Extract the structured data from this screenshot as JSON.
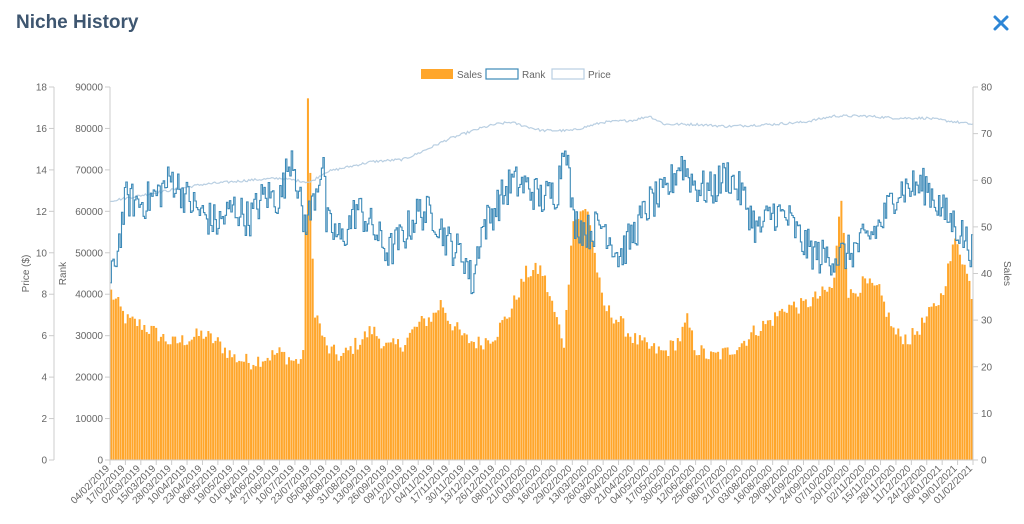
{
  "header": {
    "title": "Niche History",
    "close_icon": "close-icon"
  },
  "colors": {
    "sales": "#ffa62b",
    "rank": "#3d8ab8",
    "price": "#b9cfe2",
    "title": "#3e5670",
    "close": "#2d86d6"
  },
  "chart_data": {
    "type": "line",
    "title": "",
    "legend": [
      "Sales",
      "Rank",
      "Price"
    ],
    "legend_position": "top-center",
    "x_tick_labels": [
      "04/02/2019",
      "17/02/2019",
      "02/03/2019",
      "15/03/2019",
      "28/03/2019",
      "10/04/2019",
      "23/04/2019",
      "06/05/2019",
      "19/05/2019",
      "01/06/2019",
      "14/06/2019",
      "27/06/2019",
      "10/07/2019",
      "23/07/2019",
      "05/08/2019",
      "18/08/2019",
      "31/08/2019",
      "13/09/2019",
      "26/09/2019",
      "09/10/2019",
      "22/10/2019",
      "04/11/2019",
      "17/11/2019",
      "30/11/2019",
      "13/12/2019",
      "26/12/2019",
      "08/01/2020",
      "21/01/2020",
      "03/02/2020",
      "16/02/2020",
      "29/02/2020",
      "13/03/2020",
      "26/03/2020",
      "08/04/2020",
      "21/04/2020",
      "04/05/2020",
      "17/05/2020",
      "30/05/2020",
      "12/06/2020",
      "25/06/2020",
      "08/07/2020",
      "21/07/2020",
      "03/08/2020",
      "16/08/2020",
      "29/08/2020",
      "11/09/2020",
      "24/09/2020",
      "07/10/2020",
      "20/10/2020",
      "02/11/2020",
      "15/11/2020",
      "28/11/2020",
      "11/12/2020",
      "24/12/2020",
      "06/01/2021",
      "19/01/2021",
      "01/02/2021"
    ],
    "y_left_price": {
      "label": "Price ($)",
      "min": 0,
      "max": 18,
      "ticks": [
        0,
        2,
        4,
        6,
        8,
        10,
        12,
        14,
        16,
        18
      ]
    },
    "y_left_rank": {
      "label": "Rank",
      "min": 0,
      "max": 90000,
      "ticks": [
        0,
        10000,
        20000,
        30000,
        40000,
        50000,
        60000,
        70000,
        80000,
        90000
      ]
    },
    "y_right_sales": {
      "label": "Sales",
      "min": 0,
      "max": 80,
      "ticks": [
        0,
        10,
        20,
        30,
        40,
        50,
        60,
        70,
        80
      ]
    },
    "series": [
      {
        "name": "Sales",
        "type": "bar",
        "axis": "right",
        "keypoints": [
          [
            0,
            36
          ],
          [
            1,
            30
          ],
          [
            2,
            29
          ],
          [
            3,
            27
          ],
          [
            4,
            25
          ],
          [
            5,
            26
          ],
          [
            6,
            27
          ],
          [
            7,
            25
          ],
          [
            8,
            22
          ],
          [
            9,
            21
          ],
          [
            10,
            22
          ],
          [
            11,
            23
          ],
          [
            12,
            21
          ],
          [
            12.5,
            22
          ],
          [
            12.8,
            78
          ],
          [
            13.2,
            33
          ],
          [
            14,
            24
          ],
          [
            15,
            22
          ],
          [
            16,
            25
          ],
          [
            17,
            28
          ],
          [
            18,
            24
          ],
          [
            19,
            25
          ],
          [
            20,
            29
          ],
          [
            21,
            31
          ],
          [
            21.5,
            34
          ],
          [
            22,
            30
          ],
          [
            23,
            26
          ],
          [
            24,
            25
          ],
          [
            25,
            27
          ],
          [
            26,
            32
          ],
          [
            27,
            40
          ],
          [
            28,
            41
          ],
          [
            29,
            30
          ],
          [
            29.5,
            25
          ],
          [
            30,
            51
          ],
          [
            31,
            54
          ],
          [
            32,
            33
          ],
          [
            33,
            30
          ],
          [
            34,
            26
          ],
          [
            35,
            24
          ],
          [
            36,
            23
          ],
          [
            37,
            26
          ],
          [
            37.5,
            30
          ],
          [
            38,
            24
          ],
          [
            39,
            22
          ],
          [
            40,
            23
          ],
          [
            41,
            25
          ],
          [
            42,
            28
          ],
          [
            43,
            30
          ],
          [
            44,
            33
          ],
          [
            45,
            33
          ],
          [
            46,
            35
          ],
          [
            47,
            37
          ],
          [
            47.5,
            57
          ],
          [
            48,
            35
          ],
          [
            49,
            38
          ],
          [
            50,
            36
          ],
          [
            51,
            27
          ],
          [
            52,
            26
          ],
          [
            53,
            30
          ],
          [
            54,
            35
          ],
          [
            55,
            48
          ],
          [
            56,
            36
          ]
        ]
      },
      {
        "name": "Rank",
        "type": "line",
        "axis": "rank",
        "keypoints": [
          [
            0,
            42000
          ],
          [
            0.5,
            52000
          ],
          [
            1,
            63000
          ],
          [
            2,
            62000
          ],
          [
            3,
            64000
          ],
          [
            4,
            68000
          ],
          [
            5,
            63000
          ],
          [
            6,
            59000
          ],
          [
            7,
            57000
          ],
          [
            8,
            61000
          ],
          [
            9,
            58000
          ],
          [
            10,
            64000
          ],
          [
            11,
            63000
          ],
          [
            11.8,
            75000
          ],
          [
            12.5,
            57000
          ],
          [
            13,
            60000
          ],
          [
            13.8,
            73000
          ],
          [
            14,
            57000
          ],
          [
            15,
            53000
          ],
          [
            16,
            61000
          ],
          [
            17,
            56000
          ],
          [
            18,
            50000
          ],
          [
            19,
            54000
          ],
          [
            20,
            60000
          ],
          [
            21,
            59000
          ],
          [
            22,
            52000
          ],
          [
            23,
            49000
          ],
          [
            23.5,
            42000
          ],
          [
            24,
            55000
          ],
          [
            25,
            61000
          ],
          [
            26,
            67000
          ],
          [
            27,
            66000
          ],
          [
            28,
            63000
          ],
          [
            29,
            65000
          ],
          [
            29.5,
            79000
          ],
          [
            30,
            58000
          ],
          [
            31,
            55000
          ],
          [
            32,
            57000
          ],
          [
            33,
            49000
          ],
          [
            34,
            55000
          ],
          [
            35,
            62000
          ],
          [
            36,
            64000
          ],
          [
            37,
            72000
          ],
          [
            38,
            66000
          ],
          [
            39,
            65000
          ],
          [
            40,
            69000
          ],
          [
            41,
            64000
          ],
          [
            42,
            55000
          ],
          [
            43,
            60000
          ],
          [
            44,
            58000
          ],
          [
            45,
            52000
          ],
          [
            46,
            49000
          ],
          [
            47,
            49000
          ],
          [
            48,
            50000
          ],
          [
            49,
            53000
          ],
          [
            50,
            57000
          ],
          [
            51,
            65000
          ],
          [
            52,
            66000
          ],
          [
            53,
            66000
          ],
          [
            54,
            60000
          ],
          [
            55,
            56000
          ],
          [
            56,
            50000
          ]
        ]
      },
      {
        "name": "Price",
        "type": "line",
        "axis": "left",
        "keypoints": [
          [
            0,
            12.5
          ],
          [
            3,
            12.9
          ],
          [
            6,
            13.3
          ],
          [
            9,
            13.5
          ],
          [
            11,
            13.6
          ],
          [
            13,
            13.4
          ],
          [
            14,
            13.9
          ],
          [
            17,
            14.4
          ],
          [
            19,
            14.5
          ],
          [
            20,
            14.8
          ],
          [
            22,
            15.5
          ],
          [
            24,
            16.0
          ],
          [
            25,
            16.2
          ],
          [
            26,
            16.3
          ],
          [
            28,
            15.9
          ],
          [
            30,
            15.9
          ],
          [
            32,
            16.3
          ],
          [
            34,
            16.4
          ],
          [
            35,
            16.6
          ],
          [
            36,
            16.2
          ],
          [
            38,
            16.2
          ],
          [
            40,
            16.1
          ],
          [
            43,
            16.2
          ],
          [
            45,
            16.3
          ],
          [
            47,
            16.6
          ],
          [
            49,
            16.6
          ],
          [
            51,
            16.5
          ],
          [
            53,
            16.5
          ],
          [
            55,
            16.3
          ],
          [
            56,
            16.2
          ]
        ]
      }
    ]
  }
}
